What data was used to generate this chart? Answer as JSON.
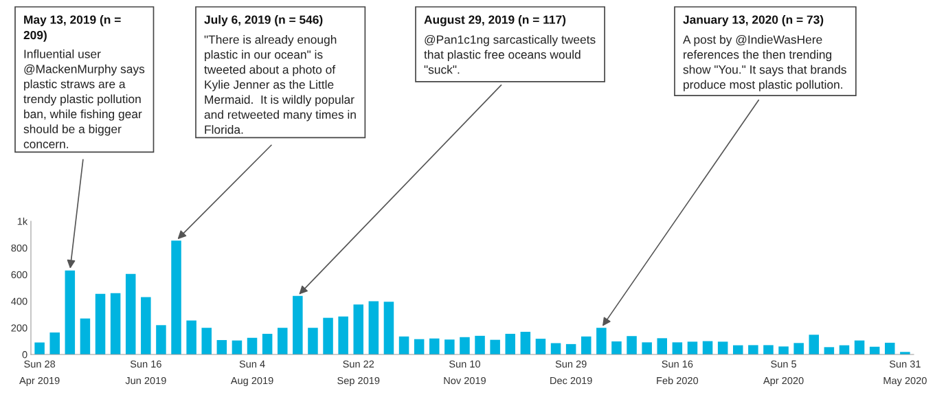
{
  "chart_data": {
    "type": "bar",
    "x": [
      "2019-04-28",
      "2019-05-05",
      "2019-05-12",
      "2019-05-19",
      "2019-05-26",
      "2019-06-02",
      "2019-06-09",
      "2019-06-16",
      "2019-06-23",
      "2019-06-30",
      "2019-07-07",
      "2019-07-14",
      "2019-07-21",
      "2019-07-28",
      "2019-08-04",
      "2019-08-11",
      "2019-08-18",
      "2019-08-25",
      "2019-09-01",
      "2019-09-08",
      "2019-09-15",
      "2019-09-22",
      "2019-09-29",
      "2019-10-06",
      "2019-10-13",
      "2019-10-20",
      "2019-10-27",
      "2019-11-03",
      "2019-11-10",
      "2019-11-17",
      "2019-11-24",
      "2019-12-01",
      "2019-12-08",
      "2019-12-15",
      "2019-12-22",
      "2019-12-29",
      "2020-01-05",
      "2020-01-12",
      "2020-01-19",
      "2020-01-26",
      "2020-02-02",
      "2020-02-09",
      "2020-02-16",
      "2020-02-23",
      "2020-03-01",
      "2020-03-08",
      "2020-03-15",
      "2020-03-22",
      "2020-03-29",
      "2020-04-05",
      "2020-04-12",
      "2020-04-19",
      "2020-04-26",
      "2020-05-03",
      "2020-05-10",
      "2020-05-17",
      "2020-05-24",
      "2020-05-31"
    ],
    "values": [
      90,
      165,
      630,
      270,
      455,
      460,
      605,
      430,
      220,
      855,
      255,
      200,
      108,
      105,
      125,
      155,
      200,
      440,
      200,
      275,
      285,
      375,
      400,
      395,
      135,
      115,
      120,
      112,
      130,
      140,
      110,
      155,
      170,
      118,
      85,
      78,
      135,
      200,
      98,
      138,
      91,
      122,
      91,
      96,
      100,
      96,
      69,
      70,
      70,
      60,
      86,
      148,
      55,
      69,
      105,
      58,
      88,
      19
    ],
    "color": "#00b4e0",
    "ylim": [
      0,
      1000
    ],
    "yticks": [
      0,
      200,
      400,
      600,
      800,
      {
        "value": 1000,
        "label": "1k"
      }
    ],
    "xlim": [
      "2019-04-24",
      "2020-06-04"
    ],
    "xticks": [
      {
        "value": "2019-04-28",
        "label": "Sun 28\nApr 2019"
      },
      {
        "value": "2019-06-16",
        "label": "Sun 16\nJun 2019"
      },
      {
        "value": "2019-08-04",
        "label": "Sun 4\nAug 2019"
      },
      {
        "value": "2019-09-22",
        "label": "Sun 22\nSep 2019"
      },
      {
        "value": "2019-11-10",
        "label": "Sun 10\nNov 2019"
      },
      {
        "value": "2019-12-29",
        "label": "Sun 29\nDec 2019"
      },
      {
        "value": "2020-02-16",
        "label": "Sun 16\nFeb 2020"
      },
      {
        "value": "2020-04-05",
        "label": "Sun 5\nApr 2020"
      },
      {
        "value": "2020-05-31",
        "label": "Sun 31\nMay 2020"
      }
    ],
    "grid": false,
    "annotations": [
      "May 13, 2019 (n =\n209)",
      {
        "text": "Influential user\n@MackenMurphy says\nplastic straws are a\ntrendy plastic pollution\nban, while fishing gear\nshould be a bigger\nconcern.",
        "x": "2019-05-12",
        "y": 630
      },
      "July 6, 2019 (n = 546)",
      {
        "text": "\"There is already enough\nplastic in our ocean\" is\ntweeted about a photo of\nKylie Jenner as the Little\nMermaid.  It is wildly popular\nand retweeted many times in\nFlorida.",
        "x": "2019-06-30",
        "y": 855
      },
      "August 29, 2019 (n = 117)",
      {
        "text": "@Pan1c1ng sarcastically tweets\nthat plastic free oceans would\n\"suck\".",
        "x": "2019-08-25",
        "y": 440
      },
      "January 13, 2020 (n = 73)",
      {
        "text": "A post by @IndieWasHere\nreferences the then trending\nshow \"You.\" It says that brands\nproduce most plastic pollution.",
        "x": "2020-01-12",
        "y": 200
      }
    ]
  }
}
